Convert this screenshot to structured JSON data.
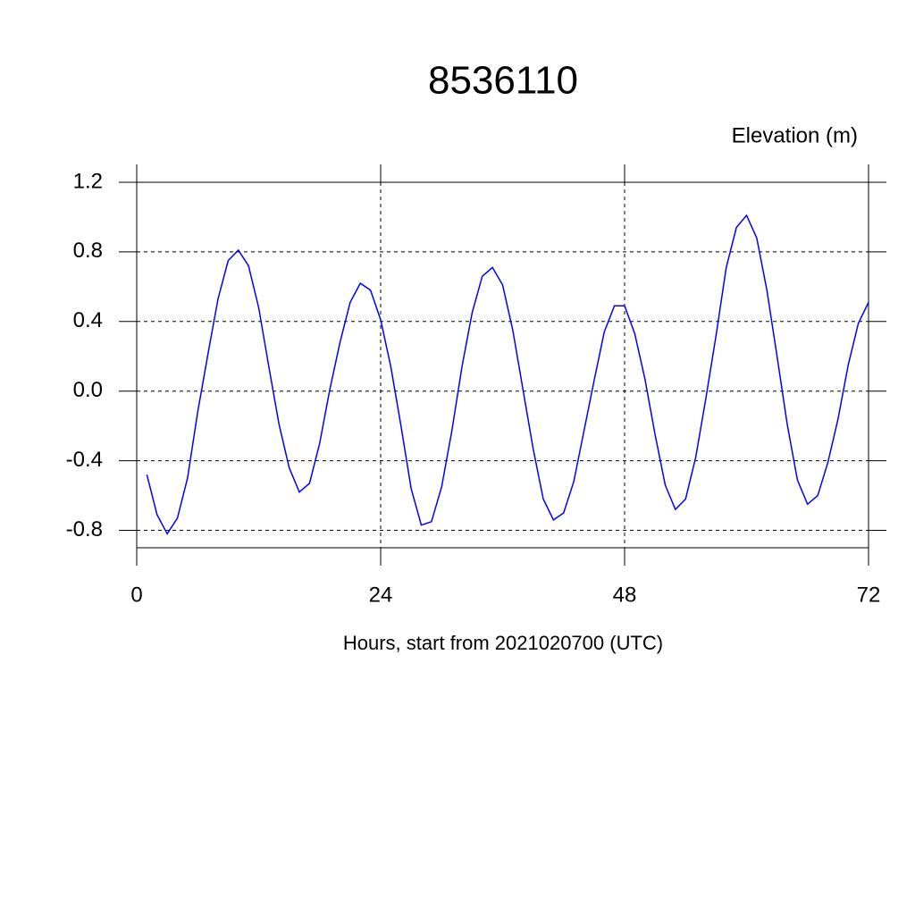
{
  "chart_data": {
    "type": "line",
    "title": "8536110",
    "ylabel": "Elevation (m)",
    "xlabel": "Hours, start from 2021020700 (UTC)",
    "x": [
      1,
      2,
      3,
      4,
      5,
      6,
      7,
      8,
      9,
      10,
      11,
      12,
      13,
      14,
      15,
      16,
      17,
      18,
      19,
      20,
      21,
      22,
      23,
      24,
      25,
      26,
      27,
      28,
      29,
      30,
      31,
      32,
      33,
      34,
      35,
      36,
      37,
      38,
      39,
      40,
      41,
      42,
      43,
      44,
      45,
      46,
      47,
      48,
      49,
      50,
      51,
      52,
      53,
      54,
      55,
      56,
      57,
      58,
      59,
      60,
      61,
      62,
      63,
      64,
      65,
      66,
      67,
      68,
      69,
      70,
      71,
      72
    ],
    "series": [
      {
        "color": "#0000ff",
        "values": [
          -0.48,
          -0.71,
          -0.82,
          -0.73,
          -0.5,
          -0.12,
          0.21,
          0.53,
          0.75,
          0.81,
          0.72,
          0.48,
          0.14,
          -0.19,
          -0.44,
          -0.58,
          -0.53,
          -0.3,
          0.01,
          0.28,
          0.51,
          0.62,
          0.58,
          0.41,
          0.14,
          -0.2,
          -0.56,
          -0.77,
          -0.75,
          -0.55,
          -0.23,
          0.14,
          0.45,
          0.66,
          0.71,
          0.61,
          0.35,
          0.01,
          -0.33,
          -0.62,
          -0.74,
          -0.7,
          -0.52,
          -0.23,
          0.06,
          0.34,
          0.49,
          0.49,
          0.33,
          0.07,
          -0.25,
          -0.54,
          -0.68,
          -0.62,
          -0.38,
          -0.04,
          0.32,
          0.71,
          0.94,
          1.01,
          0.88,
          0.58,
          0.2,
          -0.19,
          -0.51,
          -0.65,
          -0.6,
          -0.41,
          -0.16,
          0.15,
          0.39,
          0.51
        ]
      }
    ],
    "xlim": [
      0,
      72
    ],
    "xticks": [
      0,
      24,
      48,
      72
    ],
    "ylim": [
      -0.9,
      1.2
    ],
    "yticks": [
      1.2,
      0.8,
      0.4,
      {
        "value": 0,
        "label": "0.0"
      },
      -0.4,
      -0.8
    ],
    "grid": true
  }
}
